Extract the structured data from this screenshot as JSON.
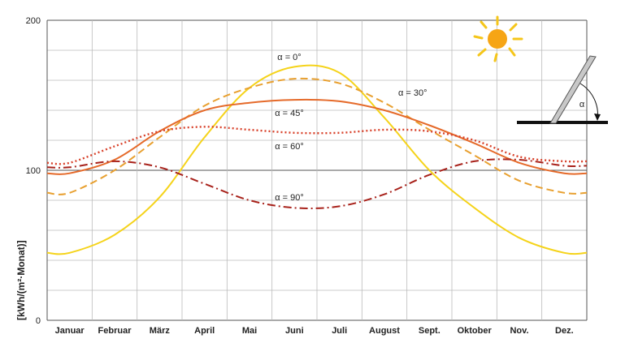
{
  "chart_data": {
    "type": "line",
    "title": "",
    "xlabel": "",
    "ylabel": "[kWh/(m²·Monat)]",
    "categories": [
      "Januar",
      "Februar",
      "März",
      "April",
      "Mai",
      "Juni",
      "Juli",
      "August",
      "Sept.",
      "Oktober",
      "Nov.",
      "Dez."
    ],
    "yticks": [
      "0",
      "100",
      "200"
    ],
    "ylim": [
      0,
      200
    ],
    "grid": true,
    "series": [
      {
        "name": "α = 0°",
        "label": "α = 0°",
        "color": "#f5d31a",
        "dash": "solid",
        "values": [
          45,
          57,
          82,
          122,
          155,
          169,
          165,
          135,
          100,
          75,
          55,
          45
        ]
      },
      {
        "name": "α = 30°",
        "label": "α = 30°",
        "color": "#e8a030",
        "dash": "dashed",
        "values": [
          85,
          100,
          122,
          143,
          155,
          161,
          158,
          145,
          127,
          110,
          93,
          85
        ]
      },
      {
        "name": "α = 45°",
        "label": "α = 45°",
        "color": "#e56a2a",
        "dash": "solid",
        "values": [
          98,
          107,
          126,
          140,
          145,
          147,
          146,
          140,
          130,
          118,
          105,
          98
        ]
      },
      {
        "name": "α = 60°",
        "label": "α = 60°",
        "color": "#d8412a",
        "dash": "dotted",
        "values": [
          105,
          116,
          126,
          129,
          127,
          125,
          125,
          127,
          126,
          120,
          109,
          106
        ]
      },
      {
        "name": "α = 90°",
        "label": "α = 90°",
        "color": "#a8221b",
        "dash": "dashdot",
        "values": [
          102,
          106,
          102,
          91,
          80,
          75,
          76,
          84,
          97,
          106,
          107,
          103
        ]
      }
    ],
    "angle_symbol": "α"
  }
}
